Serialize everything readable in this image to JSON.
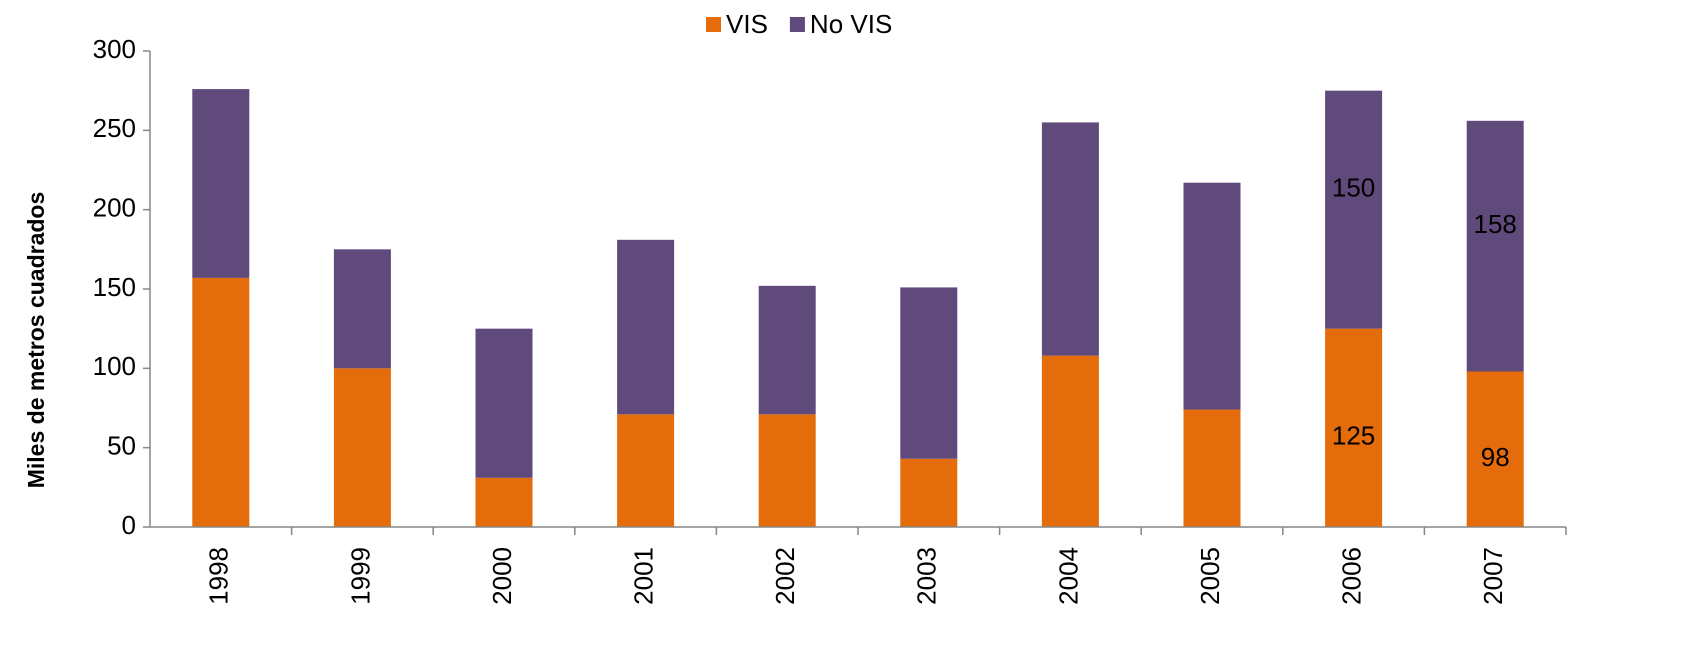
{
  "chart_data": {
    "type": "stacked_bar",
    "y_label": "Miles de metros cuadrados",
    "categories": [
      "1998",
      "1999",
      "2000",
      "2001",
      "2002",
      "2003",
      "2004",
      "2005",
      "2006",
      "2007"
    ],
    "series": [
      {
        "name": "VIS",
        "color": "#e46c0a",
        "values": [
          157,
          100,
          31,
          71,
          71,
          43,
          108,
          74,
          125,
          98
        ],
        "value_labels": [
          null,
          null,
          null,
          null,
          null,
          null,
          null,
          null,
          "125",
          "98"
        ]
      },
      {
        "name": "No VIS",
        "color": "#604a7b",
        "values": [
          119,
          75,
          94,
          110,
          81,
          108,
          147,
          143,
          150,
          158
        ],
        "value_labels": [
          null,
          null,
          null,
          null,
          null,
          null,
          null,
          null,
          "150",
          "158"
        ]
      }
    ],
    "ylim": [
      0,
      300
    ],
    "yticks": [
      0,
      50,
      100,
      150,
      200,
      250,
      300
    ],
    "legend": "top"
  }
}
